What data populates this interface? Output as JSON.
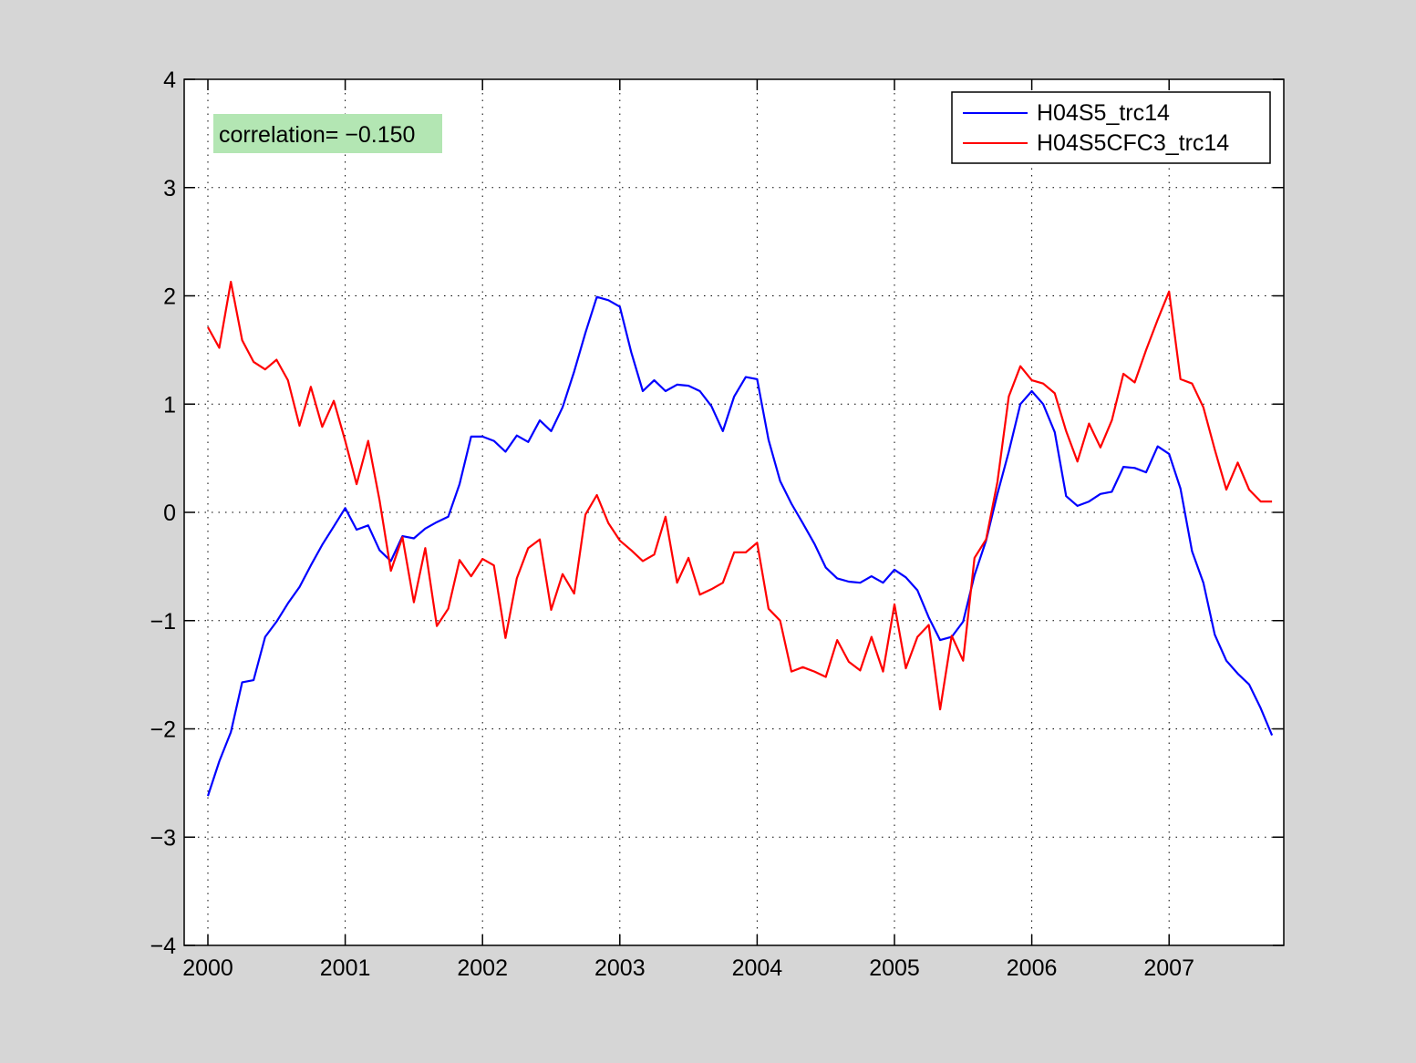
{
  "figure": {
    "background": "#d6d6d6"
  },
  "chart_data": {
    "type": "line",
    "title": "",
    "xlabel": "",
    "ylabel": "",
    "xlim": [
      2000,
      2007.83
    ],
    "ylim": [
      -4,
      4
    ],
    "xticks": [
      2000,
      2001,
      2002,
      2003,
      2004,
      2005,
      2006,
      2007
    ],
    "yticks": [
      -4,
      -3,
      -2,
      -1,
      0,
      1,
      2,
      3,
      4
    ],
    "ytick_labels": [
      "−4",
      "−3",
      "−2",
      "−1",
      "0",
      "1",
      "2",
      "3",
      "4"
    ],
    "grid": true,
    "grid_style": "dotted",
    "legend_position": "top-right",
    "annotation": {
      "text": "correlation= −0.150",
      "background": "#b3e6b3",
      "position": "top-left"
    },
    "x": [
      2000.0,
      2000.083,
      2000.167,
      2000.25,
      2000.333,
      2000.417,
      2000.5,
      2000.583,
      2000.667,
      2000.75,
      2000.833,
      2000.917,
      2001.0,
      2001.083,
      2001.167,
      2001.25,
      2001.333,
      2001.417,
      2001.5,
      2001.583,
      2001.667,
      2001.75,
      2001.833,
      2001.917,
      2002.0,
      2002.083,
      2002.167,
      2002.25,
      2002.333,
      2002.417,
      2002.5,
      2002.583,
      2002.667,
      2002.75,
      2002.833,
      2002.917,
      2003.0,
      2003.083,
      2003.167,
      2003.25,
      2003.333,
      2003.417,
      2003.5,
      2003.583,
      2003.667,
      2003.75,
      2003.833,
      2003.917,
      2004.0,
      2004.083,
      2004.167,
      2004.25,
      2004.333,
      2004.417,
      2004.5,
      2004.583,
      2004.667,
      2004.75,
      2004.833,
      2004.917,
      2005.0,
      2005.083,
      2005.167,
      2005.25,
      2005.333,
      2005.417,
      2005.5,
      2005.583,
      2005.667,
      2005.75,
      2005.833,
      2005.917,
      2006.0,
      2006.083,
      2006.167,
      2006.25,
      2006.333,
      2006.417,
      2006.5,
      2006.583,
      2006.667,
      2006.75,
      2006.833,
      2006.917,
      2007.0,
      2007.083,
      2007.167,
      2007.25,
      2007.333,
      2007.417,
      2007.5,
      2007.583,
      2007.667,
      2007.75
    ],
    "series": [
      {
        "name": "H04S5_trc14",
        "color": "#0000ff",
        "values": [
          -2.62,
          -2.3,
          -2.03,
          -1.57,
          -1.55,
          -1.15,
          -1.01,
          -0.84,
          -0.69,
          -0.49,
          -0.3,
          -0.13,
          0.04,
          -0.16,
          -0.12,
          -0.35,
          -0.45,
          -0.22,
          -0.24,
          -0.15,
          -0.09,
          -0.04,
          0.26,
          0.7,
          0.7,
          0.66,
          0.56,
          0.71,
          0.65,
          0.85,
          0.75,
          0.97,
          1.3,
          1.66,
          1.99,
          1.96,
          1.9,
          1.48,
          1.12,
          1.22,
          1.12,
          1.18,
          1.17,
          1.12,
          0.98,
          0.75,
          1.07,
          1.25,
          1.23,
          0.67,
          0.29,
          0.08,
          -0.1,
          -0.29,
          -0.51,
          -0.61,
          -0.64,
          -0.65,
          -0.59,
          -0.65,
          -0.53,
          -0.6,
          -0.72,
          -0.97,
          -1.18,
          -1.15,
          -1.01,
          -0.58,
          -0.26,
          0.17,
          0.56,
          1.0,
          1.12,
          1.0,
          0.74,
          0.15,
          0.06,
          0.1,
          0.17,
          0.19,
          0.42,
          0.41,
          0.37,
          0.61,
          0.54,
          0.22,
          -0.36,
          -0.65,
          -1.13,
          -1.37,
          -1.49,
          -1.59,
          -1.81,
          -2.06
        ]
      },
      {
        "name": "H04S5CFC3_trc14",
        "color": "#ff0000",
        "values": [
          1.71,
          1.52,
          2.13,
          1.59,
          1.39,
          1.32,
          1.41,
          1.22,
          0.8,
          1.16,
          0.79,
          1.03,
          0.66,
          0.26,
          0.66,
          0.11,
          -0.54,
          -0.23,
          -0.83,
          -0.33,
          -1.05,
          -0.89,
          -0.44,
          -0.59,
          -0.43,
          -0.49,
          -1.16,
          -0.61,
          -0.33,
          -0.25,
          -0.9,
          -0.57,
          -0.75,
          -0.02,
          0.16,
          -0.1,
          -0.26,
          -0.35,
          -0.45,
          -0.39,
          -0.04,
          -0.65,
          -0.42,
          -0.76,
          -0.71,
          -0.65,
          -0.37,
          -0.37,
          -0.28,
          -0.89,
          -1.0,
          -1.47,
          -1.43,
          -1.47,
          -1.52,
          -1.18,
          -1.38,
          -1.46,
          -1.15,
          -1.47,
          -0.85,
          -1.44,
          -1.15,
          -1.04,
          -1.82,
          -1.14,
          -1.37,
          -0.42,
          -0.25,
          0.28,
          1.07,
          1.35,
          1.22,
          1.19,
          1.1,
          0.75,
          0.47,
          0.82,
          0.6,
          0.85,
          1.28,
          1.2,
          1.5,
          1.78,
          2.04,
          1.23,
          1.19,
          0.97,
          0.58,
          0.21,
          0.46,
          0.21,
          0.1,
          0.1
        ]
      }
    ]
  }
}
